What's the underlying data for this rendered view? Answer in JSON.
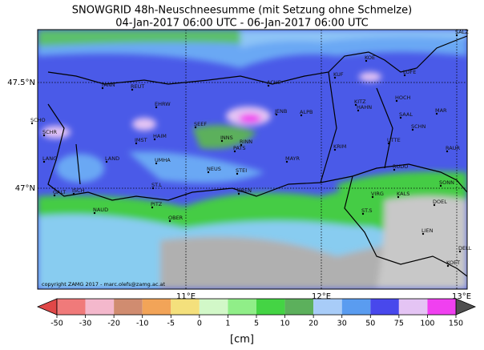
{
  "header": {
    "title": "SNOWGRID 48h-Neuschneesumme (mit Setzung ohne Schmelze)",
    "subtitle": "04-Jan-2017 06:00 UTC - 06-Jan-2017 06:00 UTC"
  },
  "map": {
    "lat_labels": [
      "47.5°N",
      "47°N"
    ],
    "lon_labels": [
      "11°E",
      "12°E",
      "13°E"
    ],
    "places": [
      "SALZ",
      "KOE",
      "KUF",
      "LOFE",
      "TANN",
      "REUT",
      "ACHE",
      "EHRW",
      "JENB",
      "ALPB",
      "KITZ",
      "HAHN",
      "HOCH",
      "SAAL",
      "MAR",
      "SCHN",
      "SCHO",
      "SCHR",
      "SEEF",
      "HAIM",
      "IMST",
      "INNS",
      "RINN",
      "PATS",
      "LANG",
      "LAND",
      "UMHA",
      "NEUS",
      "STEI",
      "MAYR",
      "KRIM",
      "UTTE",
      "RAUR",
      "RUDO",
      "SONN",
      "GALT",
      "ISCH",
      "ST.L",
      "BREN",
      "VIRG",
      "KALS",
      "ST.S",
      "DOEL",
      "NAUD",
      "PITZ",
      "OBER",
      "LIEN",
      "DELL",
      "KOET"
    ],
    "copyright": "copyright ZAMG 2017 - marc.olefs@zamg.ac.at"
  },
  "colorbar": {
    "ticks": [
      -50,
      -30,
      -20,
      -10,
      -5,
      0,
      1,
      5,
      10,
      20,
      30,
      50,
      75,
      100,
      150
    ],
    "colors": [
      "#f07a7a",
      "#f4b8cc",
      "#d08c70",
      "#f2a458",
      "#f4e07c",
      "#d2f8c8",
      "#90ee88",
      "#44d444",
      "#5cb05c",
      "#a8ccf8",
      "#5a9cf0",
      "#4848ec",
      "#e4c4f4",
      "#f040f0"
    ],
    "last_color": "#c054c0",
    "under_color": "#e04848",
    "over_color": "#505050",
    "label": "[cm]"
  }
}
